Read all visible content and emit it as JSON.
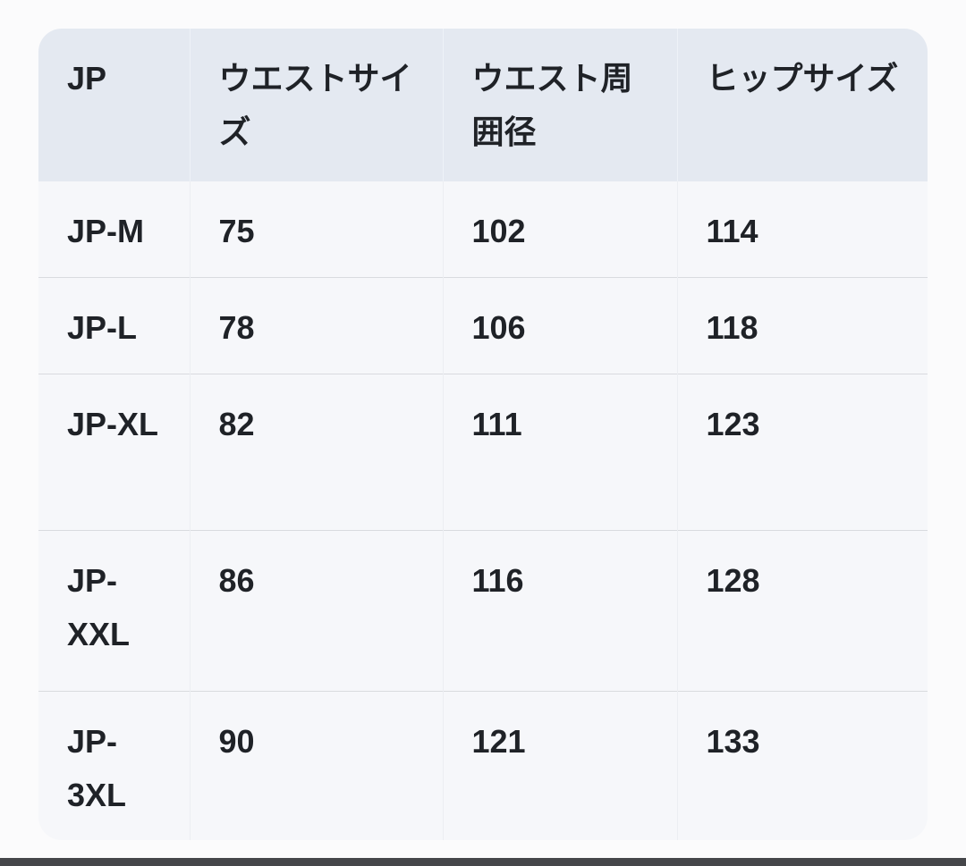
{
  "size_table": {
    "headers": [
      "JP",
      "ウエストサイズ",
      "ウエスト周囲径",
      "ヒップサイズ"
    ],
    "rows": [
      [
        "JP-M",
        "75",
        "102",
        "114"
      ],
      [
        "JP-L",
        "78",
        "106",
        "118"
      ],
      [
        "JP-XL",
        "82",
        "111",
        "123"
      ],
      [
        "JP-XXL",
        "86",
        "116",
        "128"
      ],
      [
        "JP-3XL",
        "90",
        "121",
        "133"
      ]
    ]
  },
  "colors": {
    "page_bg": "#fbfbfc",
    "header_bg": "#e4e9f1",
    "row_bg": "#f6f7fa",
    "row_divider": "#d9dbdf",
    "text": "#1f2227",
    "bottom_bar": "#45464a"
  }
}
